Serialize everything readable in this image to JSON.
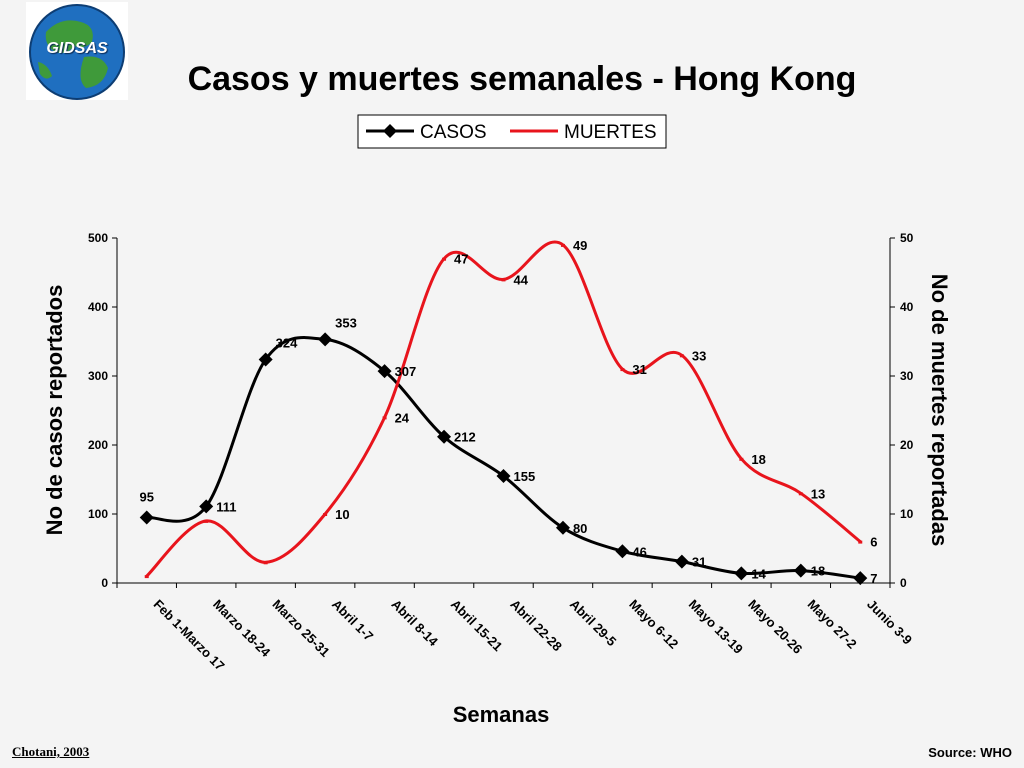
{
  "logo": {
    "text": "GIDSAS",
    "icon": "globe-icon"
  },
  "footer": {
    "left": "Chotani, 2003",
    "right": "Source: WHO"
  },
  "chart_data": {
    "type": "line",
    "title": "Casos y muertes semanales - Hong Kong",
    "xlabel": "Semanas",
    "ylabel_left": "No de casos reportados",
    "ylabel_right": "No de muertes reportadas",
    "ylim_left": [
      0,
      500
    ],
    "ylim_right": [
      0,
      50
    ],
    "yticks_left": [
      0,
      100,
      200,
      300,
      400,
      500
    ],
    "yticks_right": [
      0,
      10,
      20,
      30,
      40,
      50
    ],
    "legend_position": "top-center",
    "grid": false,
    "categories": [
      "Feb 1-Marzo 17",
      "Marzo 18-24",
      "Marzo 25-31",
      "Abril 1-7",
      "Abril 8-14",
      "Abril 15-21",
      "Abril 22-28",
      "Abril 29-5",
      "Mayo 6-12",
      "Mayo 13-19",
      "Mayo 20-26",
      "Mayo 27-2",
      "Junio 3-9"
    ],
    "series": [
      {
        "name": "CASOS",
        "axis": "left",
        "color": "#000000",
        "marker": "diamond",
        "values": [
          95,
          111,
          324,
          353,
          307,
          212,
          155,
          80,
          46,
          31,
          14,
          18,
          7
        ],
        "labels": [
          "95",
          "111",
          "324",
          "353",
          "307",
          "212",
          "155",
          "80",
          "46",
          "31",
          "14",
          "18",
          "7"
        ]
      },
      {
        "name": "MUERTES",
        "axis": "right",
        "color": "#e8141c",
        "marker": "dash",
        "values": [
          1,
          9,
          3,
          10,
          24,
          47,
          44,
          49,
          31,
          33,
          18,
          13,
          6
        ],
        "labels": [
          "",
          "",
          "",
          "10",
          "24",
          "47",
          "44",
          "49",
          "31",
          "33",
          "18",
          "13",
          "6"
        ]
      }
    ]
  }
}
